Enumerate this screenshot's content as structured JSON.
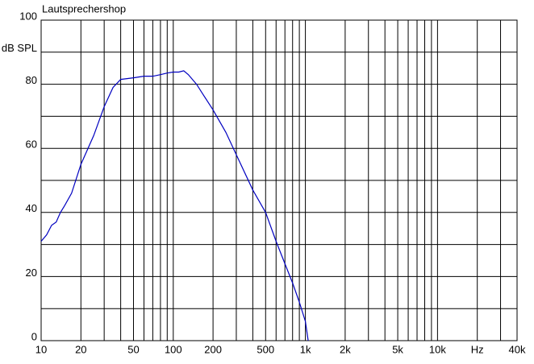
{
  "header": "Lautsprechershop",
  "chart_data": {
    "type": "line",
    "xscale": "log",
    "x": [
      10,
      11,
      12,
      13,
      14,
      15,
      17,
      20,
      25,
      30,
      35,
      40,
      50,
      60,
      70,
      80,
      90,
      100,
      110,
      120,
      130,
      150,
      170,
      200,
      250,
      300,
      400,
      500,
      600,
      700,
      800,
      900,
      1000,
      1050
    ],
    "series": [
      {
        "color": "#0000c0",
        "values": [
          31,
          33,
          36,
          37,
          40,
          42,
          46,
          55,
          64,
          73,
          79,
          81.5,
          82,
          82.5,
          82.5,
          83,
          83.5,
          83.8,
          83.8,
          84.2,
          83,
          80,
          76.5,
          72,
          65,
          58,
          47,
          40,
          31,
          24,
          18,
          12,
          6,
          0
        ]
      }
    ],
    "xlim": [
      10,
      40000
    ],
    "ylim": [
      0,
      100
    ],
    "xticks": [
      10,
      20,
      50,
      100,
      200,
      500,
      {
        "value": 1000,
        "label": "1k"
      },
      {
        "value": 2000,
        "label": "2k"
      },
      {
        "value": 5000,
        "label": "5k"
      },
      {
        "value": 10000,
        "label": "10k"
      },
      {
        "value": 20000,
        "label": "Hz"
      },
      {
        "value": 40000,
        "label": "40k"
      }
    ],
    "xgrid": [
      30,
      40,
      60,
      70,
      80,
      90,
      300,
      400,
      600,
      700,
      800,
      900,
      3000,
      4000,
      6000,
      7000,
      8000,
      9000,
      30000
    ],
    "yticks": [
      0,
      20,
      40,
      60,
      80,
      {
        "value": 90,
        "label": "dB SPL"
      },
      100
    ],
    "ygrid": [
      10,
      30,
      50,
      70
    ],
    "grid": true
  }
}
